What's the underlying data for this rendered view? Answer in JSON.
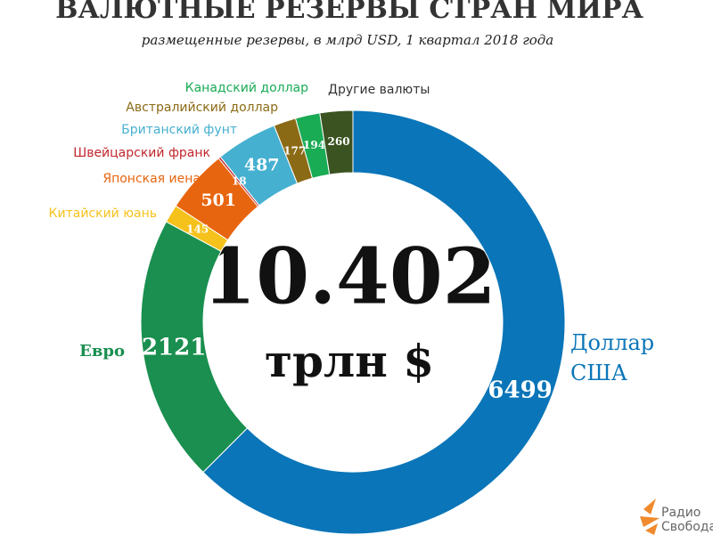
{
  "chart_data": {
    "type": "pie",
    "title": "ВАЛЮТНЫЕ РЕЗЕРВЫ СТРАН МИРА",
    "subtitle": "размещенные резервы, в млрд USD, 1 квартал 2018 года",
    "center_value": "10.402",
    "center_unit": "трлн $",
    "logo": [
      "Радио",
      "Свобода"
    ],
    "categories": [
      "Доллар США",
      "Евро",
      "Китайский юань",
      "Японская иена",
      "Швейцарский франк",
      "Британский фунт",
      "Австралийский доллар",
      "Канадский доллар",
      "Другие валюты"
    ],
    "values": [
      6499,
      2121,
      145,
      501,
      18,
      487,
      177,
      194,
      260
    ],
    "colors": [
      "#0a75b8",
      "#1a8f4f",
      "#f5c21b",
      "#e8650f",
      "#c1272d",
      "#45b0d0",
      "#8a6a14",
      "#1aab55",
      "#3b5321"
    ]
  }
}
